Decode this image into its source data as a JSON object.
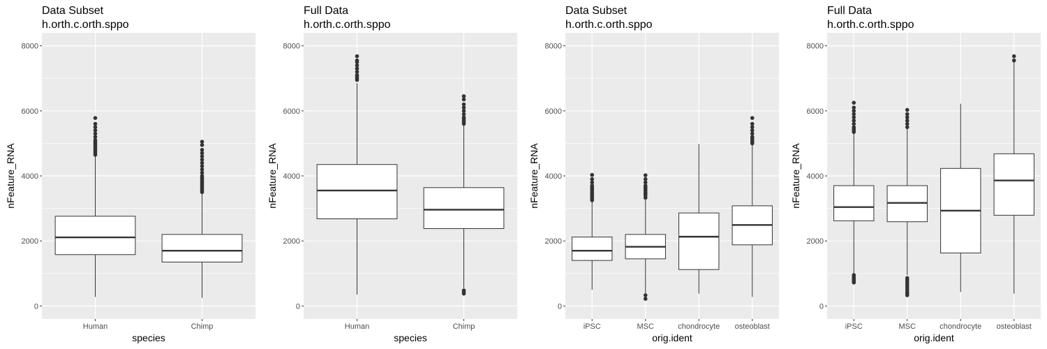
{
  "chart_data": [
    {
      "type": "boxplot",
      "title": "Data Subset",
      "subtitle": "h.orth.c.orth.sppo",
      "xlabel": "species",
      "ylabel": "nFeature_RNA",
      "ylim": [
        -400,
        8400
      ],
      "yticks": [
        0,
        2000,
        4000,
        6000,
        8000
      ],
      "grid": true,
      "categories": [
        "Human",
        "Chimp"
      ],
      "boxes": [
        {
          "category": "Human",
          "q1": 1580,
          "median": 2110,
          "q3": 2760,
          "whisker_low": 280,
          "whisker_high": 4600,
          "outliers": [
            4650,
            4700,
            4750,
            4800,
            4850,
            4900,
            4950,
            5000,
            5050,
            5100,
            5200,
            5300,
            5400,
            5500,
            5600,
            5780
          ]
        },
        {
          "category": "Chimp",
          "q1": 1350,
          "median": 1700,
          "q3": 2200,
          "whisker_low": 250,
          "whisker_high": 3450,
          "outliers": [
            3500,
            3550,
            3600,
            3650,
            3700,
            3750,
            3800,
            3850,
            3900,
            3950,
            4000,
            4100,
            4200,
            4300,
            4400,
            4500,
            4600,
            4700,
            4800,
            4950,
            5050
          ]
        }
      ]
    },
    {
      "type": "boxplot",
      "title": "Full Data",
      "subtitle": "h.orth.c.orth.sppo",
      "xlabel": "species",
      "ylabel": "nFeature_RNA",
      "ylim": [
        -400,
        8400
      ],
      "yticks": [
        0,
        2000,
        4000,
        6000,
        8000
      ],
      "grid": true,
      "categories": [
        "Human",
        "Chimp"
      ],
      "boxes": [
        {
          "category": "Human",
          "q1": 2680,
          "median": 3550,
          "q3": 4350,
          "whisker_low": 350,
          "whisker_high": 6850,
          "outliers": [
            6950,
            7000,
            7050,
            7100,
            7200,
            7300,
            7400,
            7500,
            7550,
            7680
          ]
        },
        {
          "category": "Chimp",
          "q1": 2380,
          "median": 2960,
          "q3": 3640,
          "whisker_low": 550,
          "whisker_high": 5550,
          "outliers": [
            380,
            430,
            480,
            5600,
            5650,
            5700,
            5750,
            5800,
            5900,
            6000,
            6100,
            6200,
            6350,
            6450
          ]
        }
      ]
    },
    {
      "type": "boxplot",
      "title": "Data Subset",
      "subtitle": "h.orth.c.orth.sppo",
      "xlabel": "orig.ident",
      "ylabel": "nFeature_RNA",
      "ylim": [
        -400,
        8400
      ],
      "yticks": [
        0,
        2000,
        4000,
        6000,
        8000
      ],
      "grid": true,
      "categories": [
        "iPSC",
        "MSC",
        "chondrocyte",
        "osteoblast"
      ],
      "boxes": [
        {
          "category": "iPSC",
          "q1": 1400,
          "median": 1700,
          "q3": 2120,
          "whisker_low": 500,
          "whisker_high": 3200,
          "outliers": [
            3250,
            3300,
            3350,
            3400,
            3450,
            3500,
            3550,
            3600,
            3650,
            3700,
            3800,
            3900,
            4030
          ]
        },
        {
          "category": "MSC",
          "q1": 1450,
          "median": 1820,
          "q3": 2200,
          "whisker_low": 380,
          "whisker_high": 3280,
          "outliers": [
            220,
            330,
            3330,
            3400,
            3450,
            3500,
            3550,
            3600,
            3650,
            3700,
            3800,
            3900,
            4020
          ]
        },
        {
          "category": "chondrocyte",
          "q1": 1120,
          "median": 2130,
          "q3": 2860,
          "whisker_low": 380,
          "whisker_high": 4980,
          "outliers": []
        },
        {
          "category": "osteoblast",
          "q1": 1880,
          "median": 2490,
          "q3": 3080,
          "whisker_low": 280,
          "whisker_high": 4950,
          "outliers": [
            5000,
            5050,
            5100,
            5150,
            5200,
            5300,
            5400,
            5500,
            5600,
            5780
          ]
        }
      ]
    },
    {
      "type": "boxplot",
      "title": "Full Data",
      "subtitle": "h.orth.c.orth.sppo",
      "xlabel": "orig.ident",
      "ylabel": "nFeature_RNA",
      "ylim": [
        -400,
        8400
      ],
      "yticks": [
        0,
        2000,
        4000,
        6000,
        8000
      ],
      "grid": true,
      "categories": [
        "iPSC",
        "MSC",
        "chondrocyte",
        "osteoblast"
      ],
      "boxes": [
        {
          "category": "iPSC",
          "q1": 2620,
          "median": 3040,
          "q3": 3700,
          "whisker_low": 1000,
          "whisker_high": 5300,
          "outliers": [
            720,
            760,
            800,
            850,
            900,
            950,
            5350,
            5400,
            5450,
            5500,
            5600,
            5700,
            5800,
            5900,
            6000,
            6100,
            6250
          ]
        },
        {
          "category": "MSC",
          "q1": 2590,
          "median": 3170,
          "q3": 3700,
          "whisker_low": 950,
          "whisker_high": 5450,
          "outliers": [
            330,
            380,
            430,
            500,
            560,
            620,
            680,
            740,
            800,
            860,
            5500,
            5600,
            5700,
            5800,
            5900,
            6030
          ]
        },
        {
          "category": "chondrocyte",
          "q1": 1630,
          "median": 2930,
          "q3": 4230,
          "whisker_low": 430,
          "whisker_high": 6220,
          "outliers": []
        },
        {
          "category": "osteoblast",
          "q1": 2790,
          "median": 3860,
          "q3": 4680,
          "whisker_low": 380,
          "whisker_high": 7500,
          "outliers": [
            7550,
            7680
          ]
        }
      ]
    }
  ]
}
